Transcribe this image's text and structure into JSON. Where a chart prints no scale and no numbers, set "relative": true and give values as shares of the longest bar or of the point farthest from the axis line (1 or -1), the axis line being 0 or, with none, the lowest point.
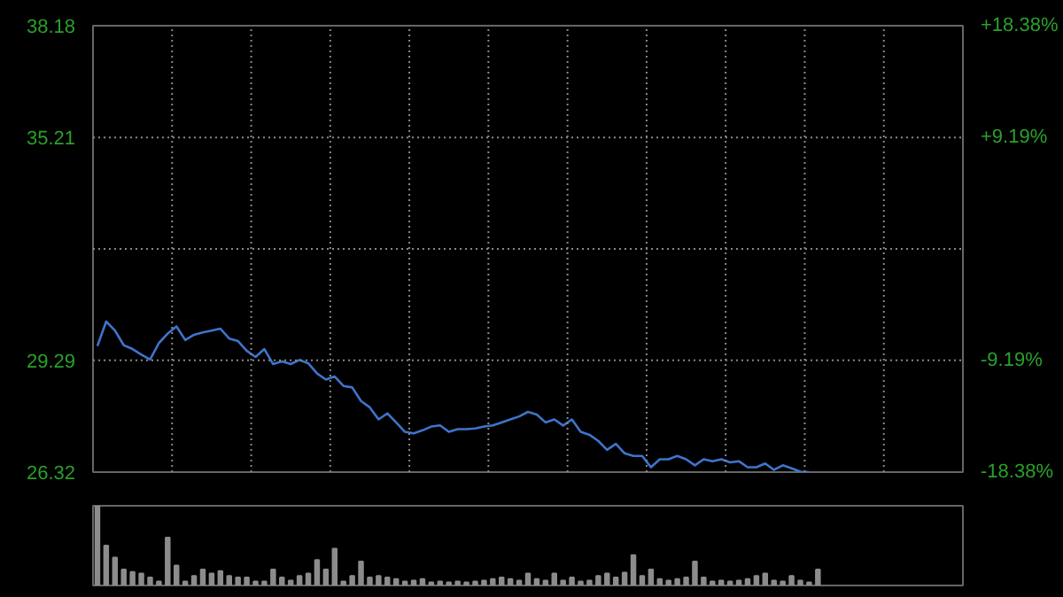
{
  "chart_data": [
    {
      "type": "line",
      "categories": [
        null,
        null,
        null,
        null,
        null,
        null,
        null,
        null,
        null,
        null,
        null,
        null,
        null,
        null,
        null,
        null,
        null,
        null,
        null,
        null,
        null,
        null,
        null,
        null,
        null,
        null,
        null,
        null,
        null,
        null,
        null,
        null,
        null,
        null,
        null,
        null,
        null,
        null,
        null,
        null,
        null,
        null,
        null,
        null,
        null,
        null,
        null,
        null,
        null,
        null,
        null,
        null,
        null,
        null,
        null,
        null,
        null,
        null,
        null,
        null,
        null,
        null,
        null,
        null,
        null,
        null,
        null,
        null,
        null,
        null,
        null,
        null,
        null,
        null,
        null,
        null,
        null,
        null,
        null,
        null,
        null,
        null,
        null,
        null,
        null,
        null,
        null,
        null,
        null,
        null,
        null,
        null,
        null,
        null,
        null,
        null,
        null,
        null,
        null
      ],
      "series": [
        {
          "color": "#3f74cc",
          "values": [
            29.67,
            30.32,
            30.08,
            29.69,
            29.59,
            29.44,
            29.31,
            29.75,
            30.0,
            30.19,
            29.83,
            29.97,
            30.03,
            30.08,
            30.13,
            29.87,
            29.8,
            29.54,
            29.38,
            29.59,
            29.19,
            29.26,
            29.19,
            29.3,
            29.21,
            28.94,
            28.78,
            28.86,
            28.61,
            28.57,
            28.21,
            28.04,
            27.72,
            27.88,
            27.64,
            27.39,
            27.35,
            27.43,
            27.53,
            27.56,
            27.39,
            27.46,
            27.46,
            27.48,
            27.53,
            27.56,
            27.64,
            27.72,
            27.8,
            27.92,
            27.85,
            27.64,
            27.72,
            27.56,
            27.72,
            27.39,
            27.31,
            27.15,
            26.91,
            27.07,
            26.82,
            26.75,
            26.75,
            26.45,
            26.66,
            26.66,
            26.75,
            26.66,
            26.5,
            26.66,
            26.61,
            26.66,
            26.58,
            26.61,
            26.45,
            26.45,
            26.55,
            26.38,
            26.5,
            26.42,
            26.33,
            26.32,
            null,
            null,
            null,
            null,
            null,
            null,
            null,
            null,
            null,
            null,
            null,
            null,
            null,
            null,
            null,
            null,
            null
          ]
        }
      ],
      "ylim": [
        26.32,
        38.18
      ],
      "yticks": [
        26.32,
        29.29,
        {
          "value": 32.25,
          "label": null
        },
        35.21,
        38.18
      ],
      "y2lim": [
        -18.38,
        18.38
      ],
      "y2ticks": [
        {
          "value": -18.38,
          "label": "-18.38%"
        },
        {
          "value": -9.19,
          "label": "-9.19%"
        },
        {
          "value": 9.19,
          "label": "+9.19%"
        },
        {
          "value": 18.38,
          "label": "+18.38%"
        }
      ],
      "grid": true,
      "tick_labels": "y"
    },
    {
      "type": "bar",
      "relative": true,
      "categories": [
        null,
        null,
        null,
        null,
        null,
        null,
        null,
        null,
        null,
        null,
        null,
        null,
        null,
        null,
        null,
        null,
        null,
        null,
        null,
        null,
        null,
        null,
        null,
        null,
        null,
        null,
        null,
        null,
        null,
        null,
        null,
        null,
        null,
        null,
        null,
        null,
        null,
        null,
        null,
        null,
        null,
        null,
        null,
        null,
        null,
        null,
        null,
        null,
        null,
        null,
        null,
        null,
        null,
        null,
        null,
        null,
        null,
        null,
        null,
        null,
        null,
        null,
        null,
        null,
        null,
        null,
        null,
        null,
        null,
        null,
        null,
        null,
        null,
        null,
        null,
        null,
        null,
        null,
        null,
        null,
        null,
        null,
        null,
        null,
        null,
        null,
        null,
        null,
        null,
        null,
        null,
        null,
        null,
        null,
        null,
        null,
        null,
        null,
        null
      ],
      "series": [
        {
          "color": "#8c8c8c",
          "values": [
            1.0,
            0.5,
            0.35,
            0.2,
            0.17,
            0.15,
            0.1,
            0.05,
            0.6,
            0.25,
            0.05,
            0.12,
            0.2,
            0.15,
            0.18,
            0.12,
            0.1,
            0.1,
            0.05,
            0.05,
            0.2,
            0.1,
            0.06,
            0.12,
            0.15,
            0.32,
            0.2,
            0.46,
            0.05,
            0.12,
            0.3,
            0.1,
            0.12,
            0.1,
            0.08,
            0.05,
            0.06,
            0.08,
            0.04,
            0.05,
            0.04,
            0.05,
            0.04,
            0.05,
            0.06,
            0.08,
            0.1,
            0.08,
            0.06,
            0.15,
            0.08,
            0.06,
            0.15,
            0.06,
            0.1,
            0.05,
            0.06,
            0.12,
            0.15,
            0.1,
            0.16,
            0.38,
            0.12,
            0.2,
            0.08,
            0.06,
            0.08,
            0.1,
            0.3,
            0.1,
            0.05,
            0.06,
            0.05,
            0.06,
            0.08,
            0.12,
            0.15,
            0.06,
            0.05,
            0.12,
            0.06,
            0.04,
            0.2,
            null,
            null,
            null,
            null,
            null,
            null,
            null,
            null,
            null,
            null,
            null,
            null,
            null,
            null,
            null,
            null
          ]
        }
      ],
      "grid": false
    }
  ]
}
